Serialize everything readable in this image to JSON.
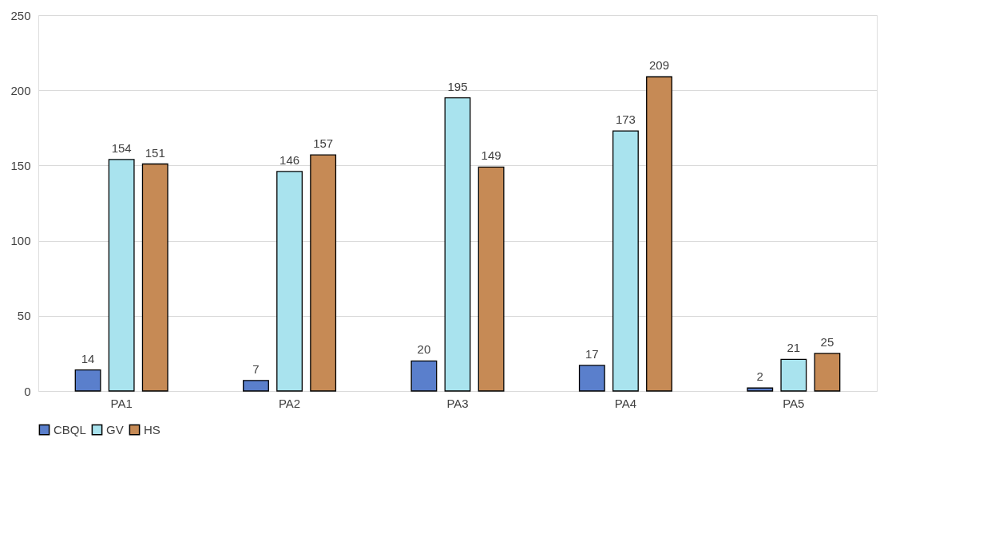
{
  "chart_data": {
    "type": "bar",
    "categories": [
      "PA1",
      "PA2",
      "PA3",
      "PA4",
      "PA5"
    ],
    "series": [
      {
        "name": "CBQL",
        "color": "#5a7fcc",
        "values": [
          14,
          7,
          20,
          17,
          2
        ]
      },
      {
        "name": "GV",
        "color": "#a9e3ee",
        "values": [
          154,
          146,
          195,
          173,
          21
        ]
      },
      {
        "name": "HS",
        "color": "#c68a55",
        "values": [
          151,
          157,
          149,
          209,
          25
        ]
      }
    ],
    "ylim": [
      0,
      250
    ],
    "yticks": [
      0,
      50,
      100,
      150,
      200,
      250
    ],
    "grid": "y",
    "legend": "bottom",
    "data_labels": true
  }
}
